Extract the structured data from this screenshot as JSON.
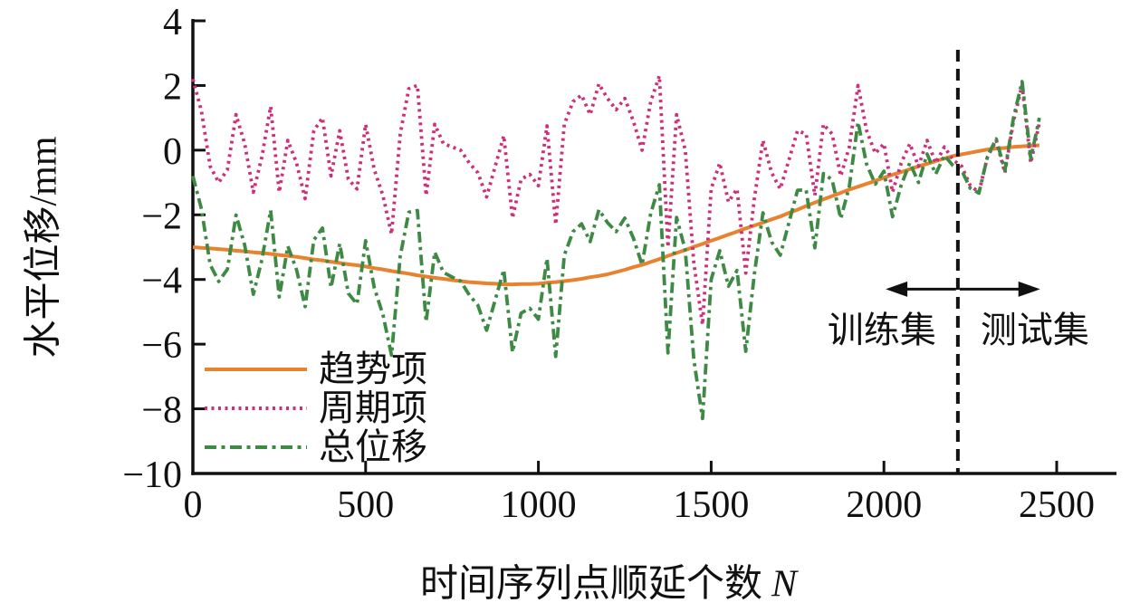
{
  "chart_data": {
    "type": "line",
    "title": "",
    "xlabel": "时间序列点顺延个数",
    "xlabel_var": "N",
    "ylabel": "水平位移/mm",
    "xlim": [
      0,
      2672
    ],
    "ylim": [
      -10,
      4
    ],
    "grid": false,
    "legend_position": "lower-left",
    "xticks": {
      "values": [
        0,
        500,
        1000,
        1500,
        2000,
        2500
      ],
      "labels": [
        "0",
        "500",
        "1000",
        "1500",
        "2000",
        "2500"
      ]
    },
    "yticks": {
      "values": [
        4,
        2,
        0,
        -2,
        -4,
        -6,
        -8,
        -10
      ],
      "labels": [
        "4",
        "2",
        "0",
        "−2",
        "−4",
        "−6",
        "−8",
        "−10"
      ]
    },
    "axis_color": "#111111",
    "x": [
      0,
      25,
      50,
      75,
      100,
      125,
      150,
      175,
      200,
      225,
      250,
      275,
      300,
      325,
      350,
      375,
      400,
      425,
      450,
      475,
      500,
      525,
      550,
      575,
      600,
      625,
      650,
      675,
      700,
      725,
      750,
      775,
      800,
      825,
      850,
      875,
      900,
      925,
      950,
      975,
      1000,
      1025,
      1050,
      1075,
      1100,
      1125,
      1150,
      1175,
      1200,
      1225,
      1250,
      1275,
      1300,
      1325,
      1350,
      1375,
      1400,
      1425,
      1450,
      1475,
      1500,
      1525,
      1550,
      1575,
      1600,
      1625,
      1650,
      1675,
      1700,
      1725,
      1750,
      1775,
      1800,
      1825,
      1850,
      1875,
      1900,
      1925,
      1950,
      1975,
      2000,
      2025,
      2050,
      2075,
      2100,
      2125,
      2150,
      2175,
      2200,
      2225,
      2250,
      2275,
      2300,
      2325,
      2350,
      2375,
      2400,
      2425,
      2450
    ],
    "series": [
      {
        "id": "trend",
        "name": "趋势项",
        "color": "#E8822F",
        "line_style": "solid",
        "values": [
          -3.0,
          -3.02,
          -3.04,
          -3.06,
          -3.08,
          -3.11,
          -3.13,
          -3.16,
          -3.18,
          -3.21,
          -3.24,
          -3.27,
          -3.3,
          -3.34,
          -3.38,
          -3.41,
          -3.45,
          -3.49,
          -3.53,
          -3.56,
          -3.6,
          -3.65,
          -3.69,
          -3.74,
          -3.78,
          -3.82,
          -3.87,
          -3.91,
          -3.95,
          -3.98,
          -4.02,
          -4.05,
          -4.08,
          -4.1,
          -4.12,
          -4.13,
          -4.15,
          -4.15,
          -4.14,
          -4.14,
          -4.13,
          -4.1,
          -4.08,
          -4.05,
          -4.02,
          -3.98,
          -3.93,
          -3.89,
          -3.84,
          -3.77,
          -3.7,
          -3.62,
          -3.55,
          -3.46,
          -3.37,
          -3.27,
          -3.18,
          -3.09,
          -2.99,
          -2.9,
          -2.8,
          -2.71,
          -2.61,
          -2.52,
          -2.42,
          -2.33,
          -2.24,
          -2.14,
          -2.05,
          -1.94,
          -1.84,
          -1.73,
          -1.62,
          -1.52,
          -1.42,
          -1.32,
          -1.22,
          -1.13,
          -1.04,
          -0.95,
          -0.85,
          -0.76,
          -0.68,
          -0.59,
          -0.5,
          -0.42,
          -0.34,
          -0.26,
          -0.18,
          -0.13,
          -0.08,
          -0.03,
          0.02,
          0.05,
          0.07,
          0.1,
          0.12,
          0.14,
          0.15
        ]
      },
      {
        "id": "periodic",
        "name": "周期项",
        "color": "#CE2F7A",
        "line_style": "dotted",
        "values": [
          2.2,
          1.2,
          -0.5,
          -1.0,
          -0.6,
          1.1,
          0.2,
          -1.3,
          -0.2,
          1.35,
          -1.3,
          0.3,
          -0.4,
          -1.5,
          0.6,
          1.0,
          -0.8,
          0.6,
          -0.9,
          -1.2,
          0.8,
          -0.6,
          -1.4,
          -2.6,
          0.5,
          1.9,
          2.0,
          -1.4,
          0.8,
          0.2,
          0.1,
          0.0,
          -0.4,
          -0.7,
          -1.45,
          -0.5,
          0.45,
          -2.1,
          -0.9,
          -0.75,
          -1.1,
          0.75,
          -2.3,
          0.8,
          1.5,
          1.7,
          1.1,
          2.05,
          1.6,
          1.25,
          1.6,
          0.9,
          0.0,
          1.5,
          2.3,
          -3.0,
          1.1,
          0.0,
          -3.5,
          -5.4,
          -1.2,
          -0.4,
          -1.6,
          -1.2,
          -3.8,
          -1.5,
          0.3,
          -0.7,
          -1.2,
          -0.3,
          0.6,
          0.5,
          -1.4,
          0.8,
          0.5,
          -0.8,
          0.1,
          2.0,
          0.6,
          -0.1,
          0.2,
          -1.3,
          -0.4,
          0.2,
          -0.5,
          0.3,
          -0.4,
          0.1,
          -0.3,
          -0.5,
          -1.1,
          -1.3,
          -0.2,
          0.3,
          -0.7,
          0.9,
          2.0,
          -0.4,
          0.85
        ]
      },
      {
        "id": "total",
        "name": "总位移",
        "color": "#3E8A45",
        "line_style": "dash-dot",
        "values": [
          -0.8,
          -1.82,
          -3.54,
          -4.06,
          -3.68,
          -2.01,
          -2.93,
          -4.46,
          -3.38,
          -1.86,
          -4.54,
          -2.97,
          -3.7,
          -4.84,
          -2.78,
          -2.41,
          -4.25,
          -2.89,
          -4.43,
          -4.76,
          -2.8,
          -4.25,
          -5.09,
          -6.34,
          -3.28,
          -1.92,
          -1.87,
          -5.31,
          -3.15,
          -3.78,
          -3.92,
          -4.05,
          -4.48,
          -4.8,
          -5.57,
          -4.63,
          -3.7,
          -6.25,
          -5.04,
          -4.89,
          -5.23,
          -3.35,
          -6.38,
          -3.25,
          -2.52,
          -2.28,
          -2.83,
          -1.84,
          -2.24,
          -2.52,
          -2.1,
          -2.72,
          -3.55,
          -1.96,
          -1.07,
          -6.27,
          -2.08,
          -3.09,
          -6.49,
          -8.3,
          -4.0,
          -3.11,
          -4.21,
          -3.72,
          -6.22,
          -3.83,
          -1.94,
          -2.84,
          -3.25,
          -2.24,
          -1.24,
          -1.23,
          -3.02,
          -0.72,
          -0.92,
          -2.12,
          -1.12,
          0.87,
          -0.44,
          -1.05,
          -0.65,
          -2.06,
          -1.08,
          -0.39,
          -1.0,
          -0.12,
          -0.74,
          -0.16,
          -0.48,
          -0.63,
          -1.18,
          -1.33,
          -0.18,
          0.35,
          -0.63,
          1.0,
          2.12,
          -0.26,
          1.0
        ]
      }
    ],
    "train_test_split": {
      "x": 2214,
      "line_style": "dashed",
      "color": "#111111",
      "left_label": "训练集",
      "right_label": "测试集",
      "label_y": -5.55,
      "arrow_y": -4.3,
      "arrow_left_end_x": 2005,
      "arrow_right_end_x": 2452
    }
  },
  "legend": {
    "items": [
      "趋势项",
      "周期项",
      "总位移"
    ]
  }
}
